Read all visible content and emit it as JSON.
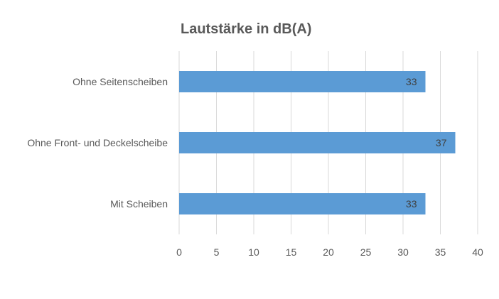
{
  "chart_data": {
    "type": "bar",
    "orientation": "horizontal",
    "title": "Lautstärke in dB(A)",
    "categories": [
      "Ohne Seitenscheiben",
      "Ohne Front- und Deckelscheibe",
      "Mit Scheiben"
    ],
    "values": [
      33,
      37,
      33
    ],
    "xlim": [
      0,
      40
    ],
    "xticks": [
      0,
      5,
      10,
      15,
      20,
      25,
      30,
      35,
      40
    ],
    "xlabel": "",
    "ylabel": "",
    "grid": "vertical",
    "data_labels": true,
    "bar_color": "#5B9BD5"
  }
}
